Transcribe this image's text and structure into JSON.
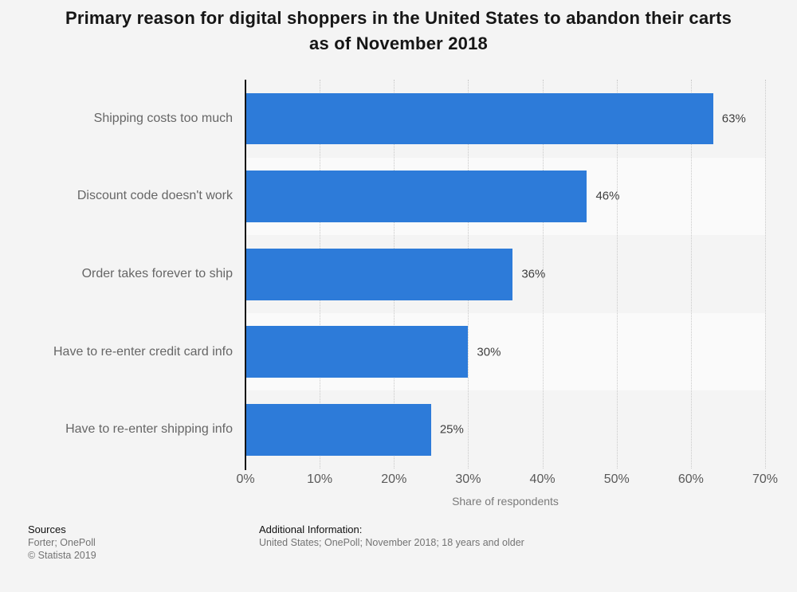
{
  "title": "Primary reason for digital shoppers in the United States to abandon their carts as of November 2018",
  "chart_data": {
    "type": "bar",
    "orientation": "horizontal",
    "categories": [
      "Shipping costs too much",
      "Discount code doesn't work",
      "Order takes forever to ship",
      "Have to re-enter credit card info",
      "Have to re-enter shipping info"
    ],
    "values": [
      63,
      46,
      36,
      30,
      25
    ],
    "value_labels": [
      "63%",
      "46%",
      "36%",
      "30%",
      "25%"
    ],
    "xlabel": "Share of respondents",
    "x_ticks": [
      "0%",
      "10%",
      "20%",
      "30%",
      "40%",
      "50%",
      "60%",
      "70%"
    ],
    "xlim": [
      0,
      70
    ],
    "grid": "vertical-dotted",
    "legend": "none",
    "bar_color": "#2d7bd9",
    "stripe_alt_color": "#fafafa",
    "background_color": "#f4f4f4"
  },
  "footer": {
    "sources_heading": "Sources",
    "sources_line1": "Forter; OnePoll",
    "sources_line2": "© Statista 2019",
    "additional_heading": "Additional Information:",
    "additional_line1": "United States; OnePoll; November 2018; 18 years and older"
  }
}
